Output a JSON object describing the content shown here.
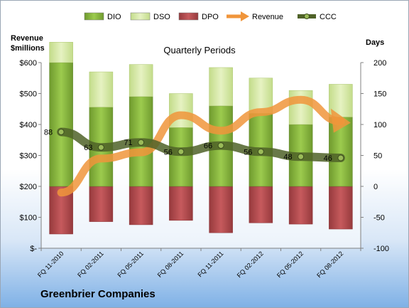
{
  "company": "Greenbrier Companies",
  "chart_data": {
    "type": "bar",
    "title": "Quarterly Periods",
    "categories": [
      "FQ 11-2010",
      "FQ 02-2011",
      "FQ 05-2011",
      "FQ 08-2011",
      "FQ 11-2011",
      "FQ 02-2012",
      "FQ 05-2012",
      "FQ 08-2012"
    ],
    "left_axis": {
      "label": "Revenue\n$millions",
      "range": [
        0,
        600
      ],
      "ticks": [
        "$-",
        "$100",
        "$200",
        "$300",
        "$400",
        "$500",
        "$600"
      ],
      "tick_values": [
        0,
        100,
        200,
        300,
        400,
        500,
        600
      ]
    },
    "right_axis": {
      "label": "Days",
      "range": [
        -100,
        200
      ],
      "ticks": [
        "-100",
        "-50",
        "0",
        "50",
        "100",
        "150",
        "200"
      ],
      "tick_values": [
        -100,
        -50,
        0,
        50,
        100,
        150,
        200
      ]
    },
    "series": [
      {
        "name": "DIO",
        "axis": "right",
        "kind": "stacked-bar",
        "color": "#8db843",
        "values": [
          200,
          128,
          145,
          95,
          130,
          118,
          100,
          112
        ]
      },
      {
        "name": "DSO",
        "axis": "right",
        "kind": "stacked-bar",
        "color": "#d6e8a8",
        "values": [
          33,
          57,
          52,
          55,
          62,
          57,
          55,
          53
        ]
      },
      {
        "name": "DPO",
        "axis": "right",
        "kind": "stacked-bar-negative",
        "color": "#b5494c",
        "values": [
          -77,
          -57,
          -62,
          -55,
          -75,
          -59,
          -61,
          -69
        ]
      },
      {
        "name": "Revenue",
        "axis": "left",
        "kind": "line",
        "color": "#f0953b",
        "values": [
          180,
          290,
          310,
          430,
          380,
          440,
          480,
          410
        ]
      },
      {
        "name": "CCC",
        "axis": "right",
        "kind": "line",
        "color": "#4f6228",
        "values": [
          88,
          63,
          71,
          56,
          66,
          56,
          48,
          46
        ],
        "data_labels": [
          "88",
          "63",
          "71",
          "56",
          "66",
          "56",
          "48",
          "46"
        ]
      }
    ],
    "legend": "top",
    "grid": false
  }
}
